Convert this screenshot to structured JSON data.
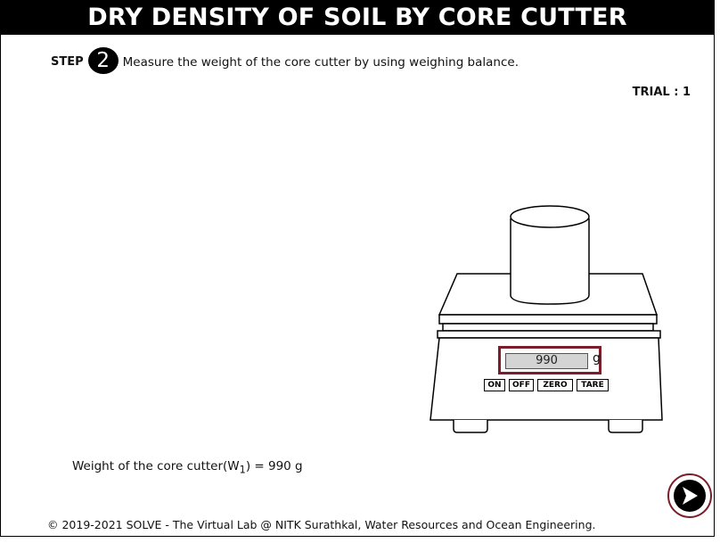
{
  "header": {
    "title": "DRY DENSITY OF SOIL BY CORE CUTTER"
  },
  "step": {
    "label": "STEP",
    "number": "2",
    "instruction": "Measure the weight of the core cutter by using weighing balance."
  },
  "trial": {
    "text": "TRIAL : 1"
  },
  "balance": {
    "reading": "990",
    "unit": "g",
    "buttons": {
      "on": "ON",
      "off": "OFF",
      "zero": "ZERO",
      "tare": "TARE"
    }
  },
  "result": {
    "prefix": "Weight of the core cutter(W",
    "subscript": "1",
    "suffix": ") = 990 g"
  },
  "footer": {
    "text": "© 2019-2021 SOLVE - The Virtual Lab @ NITK Surathkal, Water Resources and Ocean Engineering."
  },
  "navigation": {
    "next_icon": "next-arrow-icon"
  },
  "colors": {
    "accent": "#7b1d2b",
    "lcd": "#d4d4d4",
    "header": "#000000"
  }
}
